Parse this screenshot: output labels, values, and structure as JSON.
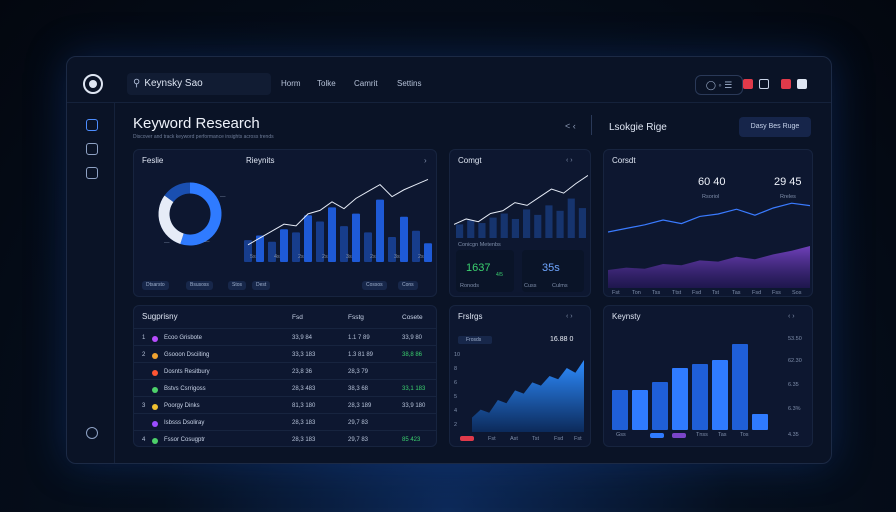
{
  "header": {
    "search_text": "Keynsky Sao",
    "nav": [
      "Horm",
      "Tolke",
      "Camrit",
      "Settins"
    ],
    "icons_box": "◯ ◦ ☰"
  },
  "page": {
    "title": "Keyword Research",
    "subtitle": "Discover and track keyword performance insights across trends",
    "nav_arrows": "< ‹",
    "side_title": "Lsokgie Rige",
    "side_button": "Dasy Bes Ruge"
  },
  "cards": {
    "donut": {
      "title": "Feslie",
      "labels": [
        "—",
        "—",
        "—"
      ],
      "chips": [
        "Dtsarsto",
        "Bsusoss",
        "Stos",
        "Dest"
      ]
    },
    "bars1": {
      "title": "Rieynits",
      "arrow": "›",
      "x_labels": [
        "5s",
        "4s",
        "2s",
        "2s",
        "3s",
        "2s",
        "3s",
        "2s"
      ],
      "chips": [
        "Cossos",
        "Cons"
      ]
    },
    "comp": {
      "title": "Comgt",
      "arrow": "‹ ›",
      "sub_title": "Conicgn Metenbs",
      "val1": "1637",
      "val1_sub": "4/5",
      "val2": "35s",
      "chip1": "Ronods",
      "chip2": "Cuss",
      "chip3": "Culms"
    },
    "area1": {
      "title": "Corsdt",
      "val1": "60 40",
      "val1_sub": "Rsoriol",
      "val2": "29 45",
      "val2_sub": "Rreles",
      "axis_labels": [
        "Fst",
        "Ton",
        "Tss",
        "Ttst",
        "Fsd",
        "Tst",
        "Tas",
        "Fsd",
        "Fss",
        "Sos"
      ]
    },
    "table": {
      "title": "Sugprisny",
      "cols": [
        "Fsd",
        "Fsstg",
        "Cosete"
      ],
      "rows": [
        {
          "n": "1",
          "dot": "#b84dff",
          "kw": "Ecoo Grisbote",
          "c1": "33,9 84",
          "c2": "1.1 7 89",
          "c3": "33,9 80",
          "c3_color": "#b6c2d8"
        },
        {
          "n": "2",
          "dot": "#f0a230",
          "kw": "Gsooon Dsciiting",
          "c1": "33,3 183",
          "c2": "1.3 81 89",
          "c3": "38,8 86",
          "c3_color": "#3bd16f"
        },
        {
          "n": "",
          "dot": "#ff5533",
          "kw": "Dosnts Resitbury",
          "c1": "23,8 36",
          "c2": "28,3 79",
          "c3": "",
          "c3_color": "#b6c2d8"
        },
        {
          "n": "",
          "dot": "#4dd16a",
          "kw": "Bstvs Csrrigoss",
          "c1": "28,3 483",
          "c2": "38,3 68",
          "c3": "33,1 183",
          "c3_color": "#3bd16f"
        },
        {
          "n": "3",
          "dot": "#f0c030",
          "kw": "Poorgy Dinks",
          "c1": "81,3 180",
          "c2": "28,3 189",
          "c3": "33,9 180",
          "c3_color": "#b6c2d8"
        },
        {
          "n": "",
          "dot": "#9b4dff",
          "kw": "Isbsss Dsoliray",
          "c1": "28,3 183",
          "c2": "29,7 83",
          "c3": "",
          "c3_color": "#b6c2d8"
        },
        {
          "n": "4",
          "dot": "#4dd16a",
          "kw": "Fssor Cosugptr",
          "c1": "28,3 183",
          "c2": "29,7 83",
          "c3": "85 423",
          "c3_color": "#3bd16f"
        }
      ]
    },
    "area2": {
      "title": "Frslrgs",
      "arrow": "‹ ›",
      "legend": "Frosds",
      "value": "16.88 0",
      "y_labels": [
        "10",
        "8",
        "6",
        "5",
        "4",
        "2"
      ],
      "x_labels": [
        "Fst",
        "Ast",
        "Tst",
        "Fsd",
        "Fst"
      ]
    },
    "bars2": {
      "title": "Keynsty",
      "arrow": "‹ ›",
      "y_labels": [
        "53.50",
        "62.30",
        "6.35",
        "6.3%",
        "4.35"
      ],
      "x_labels": [
        "Gss",
        "Tnss",
        "Tas",
        "Tos"
      ]
    }
  },
  "chart_data": [
    {
      "type": "pie",
      "title": "Feslie",
      "values": [
        55,
        30,
        15
      ],
      "categories": [
        "",
        "",
        ""
      ]
    },
    {
      "type": "bar",
      "title": "Rieynits",
      "categories": [
        "1",
        "2",
        "3",
        "4",
        "5",
        "6",
        "7",
        "8",
        "9",
        "10",
        "11",
        "12",
        "13",
        "14",
        "15",
        "16"
      ],
      "series": [
        {
          "values": [
            3,
            3,
            4,
            4,
            5,
            4,
            5,
            4,
            5,
            3,
            3,
            5,
            5,
            3,
            3,
            2
          ]
        },
        {
          "values": [
            0,
            0,
            0,
            0,
            0,
            0,
            0,
            0,
            0,
            0,
            0,
            0,
            0,
            0,
            0,
            0
          ]
        }
      ],
      "bar_values": [
        28,
        34,
        26,
        42,
        38,
        60,
        52,
        70,
        46,
        62,
        38,
        80,
        32,
        58,
        40,
        24
      ],
      "line_values": [
        20,
        28,
        36,
        44,
        42,
        56,
        60,
        70,
        62,
        74,
        82,
        90,
        76,
        84,
        90,
        96
      ],
      "ylim": [
        0,
        100
      ]
    },
    {
      "type": "line",
      "title": "Comgt",
      "values": [
        20,
        28,
        24,
        36,
        40,
        52,
        48,
        60,
        72,
        66,
        80,
        92
      ],
      "bar_values": [
        20,
        26,
        22,
        30,
        36,
        28,
        42,
        34,
        48,
        40,
        58,
        44
      ],
      "ylim": [
        0,
        100
      ]
    },
    {
      "type": "area",
      "title": "Corsdt",
      "line_values": [
        30,
        36,
        42,
        50,
        44,
        56,
        60,
        68,
        58,
        70,
        78,
        74
      ],
      "area_values": [
        30,
        34,
        32,
        40,
        38,
        46,
        44,
        52,
        48,
        56,
        62,
        70
      ],
      "ylim": [
        0,
        100
      ]
    },
    {
      "type": "area",
      "title": "Frslrgs",
      "values": [
        18,
        28,
        24,
        40,
        36,
        52,
        48,
        62,
        58,
        70,
        66,
        80,
        74,
        90
      ],
      "ylim": [
        0,
        100
      ]
    },
    {
      "type": "bar",
      "title": "Keynsty",
      "categories": [
        "1",
        "2",
        "3",
        "4",
        "5",
        "6",
        "7",
        "8"
      ],
      "values": [
        40,
        40,
        48,
        62,
        66,
        70,
        86,
        16
      ],
      "ylim": [
        0,
        100
      ]
    }
  ],
  "colors": {
    "accent": "#2f7bff",
    "bg": "#0a1326",
    "card": "#0d1730",
    "green": "#3bd16f",
    "purple": "#7a45c9"
  }
}
